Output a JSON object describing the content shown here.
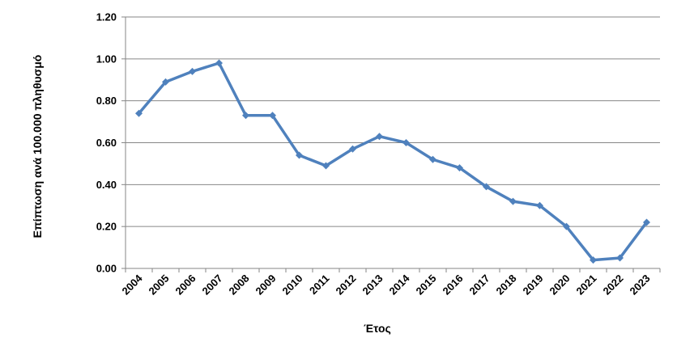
{
  "chart_data": {
    "type": "line",
    "xlabel": "Έτος",
    "ylabel": "Επίπτωση ανά 100.000 πληθυσμό",
    "categories": [
      "2004",
      "2005",
      "2006",
      "2007",
      "2008",
      "2009",
      "2010",
      "2011",
      "2012",
      "2013",
      "2014",
      "2015",
      "2016",
      "2017",
      "2018",
      "2019",
      "2020",
      "2021",
      "2022",
      "2023"
    ],
    "series": [
      {
        "values": [
          0.74,
          0.89,
          0.94,
          0.98,
          0.73,
          0.73,
          0.54,
          0.49,
          0.57,
          0.63,
          0.6,
          0.52,
          0.48,
          0.39,
          0.32,
          0.3,
          0.2,
          0.04,
          0.05,
          0.22
        ],
        "color": "#4F81BD"
      }
    ],
    "ylim": [
      0,
      1.2
    ],
    "yticks": [
      "0.00",
      "0.20",
      "0.40",
      "0.60",
      "0.80",
      "1.00",
      "1.20"
    ],
    "grid": true,
    "legend": "none"
  }
}
